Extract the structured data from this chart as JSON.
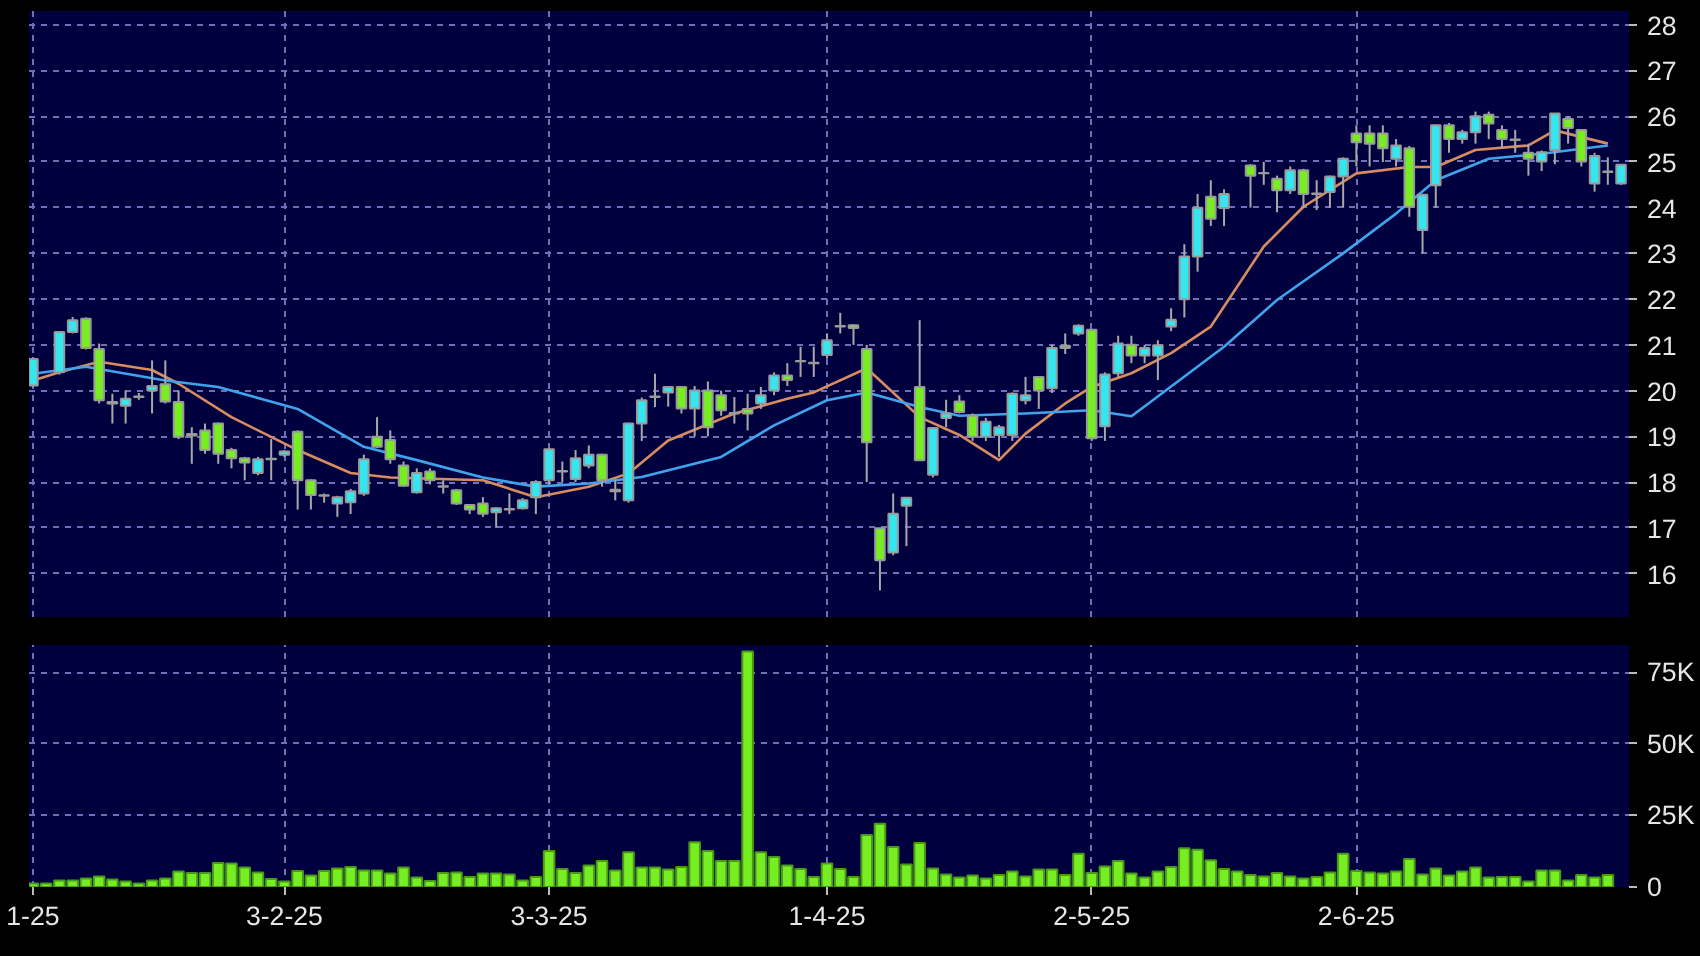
{
  "chart_data": [
    {
      "type": "candlestick",
      "ylim": [
        15.05,
        28.3
      ],
      "yticks": [
        16,
        17,
        18,
        19,
        20,
        21,
        22,
        23,
        24,
        25,
        26,
        27,
        28
      ],
      "categories": [
        null,
        null,
        null,
        null,
        null,
        null,
        null,
        null,
        null,
        null,
        null,
        null,
        null,
        null,
        null,
        null,
        null,
        null,
        null,
        null,
        null,
        null,
        null,
        null,
        null,
        null,
        null,
        null,
        null,
        null,
        null,
        null,
        null,
        null,
        null,
        null,
        null,
        null,
        null,
        null,
        null,
        null,
        null,
        null,
        null,
        null,
        null,
        null,
        null,
        null,
        null,
        null,
        null,
        null,
        null,
        null,
        null,
        null,
        null,
        null,
        null,
        null,
        null,
        null,
        null,
        null,
        null,
        null,
        null,
        null,
        null,
        null,
        null,
        null,
        null,
        null,
        null,
        null,
        null,
        null,
        null,
        null,
        null,
        null,
        null,
        null,
        null,
        null,
        null,
        null,
        null,
        null,
        null,
        null,
        null,
        null,
        null,
        null,
        null,
        null,
        null,
        null,
        null,
        null,
        null,
        null,
        null,
        null,
        null,
        null,
        null,
        null,
        null,
        null,
        null,
        null,
        null,
        null,
        null,
        null,
        null
      ],
      "tick_labels": "y",
      "grid": true,
      "series": [
        {
          "type": "line",
          "color": "#d98c5f",
          "values": [
            20.22,
            null,
            20.4,
            null,
            null,
            20.63,
            null,
            null,
            null,
            20.45,
            null,
            20.15,
            null,
            null,
            null,
            19.42,
            null,
            null,
            null,
            null,
            18.7,
            null,
            null,
            null,
            18.2,
            null,
            null,
            18.1,
            null,
            null,
            null,
            null,
            null,
            null,
            18.04,
            null,
            null,
            null,
            17.67,
            null,
            null,
            null,
            17.9,
            null,
            null,
            18.19,
            null,
            null,
            18.91,
            null,
            null,
            null,
            null,
            19.5,
            null,
            null,
            null,
            19.82,
            null,
            19.96,
            null,
            null,
            null,
            20.49,
            null,
            null,
            null,
            19.42,
            null,
            null,
            19.03,
            null,
            null,
            18.48,
            null,
            19.06,
            null,
            null,
            19.72,
            null,
            20.08,
            null,
            null,
            20.38,
            null,
            null,
            20.82,
            null,
            null,
            21.4,
            null,
            null,
            null,
            23.15,
            null,
            null,
            24.02,
            null,
            null,
            null,
            24.75,
            null,
            null,
            null,
            24.89,
            null,
            24.89,
            null,
            null,
            25.26,
            null,
            null,
            null,
            25.36,
            null,
            25.69,
            null,
            null,
            null,
            25.4,
            null
          ]
        },
        {
          "type": "line",
          "color": "#3fa4ec",
          "values": [
            20.37,
            null,
            null,
            null,
            20.52,
            null,
            null,
            null,
            null,
            null,
            20.22,
            null,
            null,
            null,
            20.08,
            null,
            null,
            null,
            null,
            null,
            19.6,
            null,
            null,
            null,
            null,
            18.77,
            null,
            null,
            null,
            18.48,
            null,
            null,
            null,
            null,
            18.1,
            null,
            null,
            null,
            17.9,
            null,
            null,
            null,
            17.97,
            null,
            null,
            null,
            18.11,
            null,
            null,
            null,
            null,
            null,
            18.55,
            null,
            null,
            null,
            19.24,
            null,
            null,
            null,
            19.79,
            null,
            null,
            19.96,
            null,
            null,
            null,
            19.64,
            null,
            null,
            19.45,
            null,
            null,
            null,
            null,
            19.5,
            null,
            null,
            null,
            null,
            19.57,
            null,
            null,
            19.44,
            null,
            null,
            20.09,
            null,
            null,
            null,
            20.96,
            null,
            null,
            null,
            21.98,
            null,
            null,
            null,
            null,
            23.0,
            null,
            null,
            null,
            23.87,
            null,
            null,
            24.6,
            null,
            null,
            null,
            25.07,
            null,
            null,
            null,
            25.18,
            null,
            null,
            null,
            null,
            25.36,
            null
          ]
        },
        {
          "type": "candlestick",
          "ohlc": [
            [
              20.11,
              20.73,
              20.08,
              20.69
            ],
            null,
            [
              20.4,
              21.3,
              20.35,
              21.28
            ],
            [
              21.28,
              21.61,
              21.25,
              21.54
            ],
            [
              21.57,
              21.6,
              20.9,
              20.93
            ],
            [
              20.91,
              21.03,
              19.72,
              19.79
            ],
            [
              19.75,
              19.93,
              19.28,
              19.72
            ],
            [
              19.67,
              20.0,
              19.28,
              19.82
            ],
            [
              19.87,
              19.95,
              19.8,
              19.86
            ],
            [
              20.0,
              20.66,
              19.5,
              20.1
            ],
            [
              20.14,
              20.66,
              19.72,
              19.76
            ],
            [
              19.75,
              20.0,
              18.94,
              18.99
            ],
            [
              19.05,
              19.2,
              18.4,
              19.02
            ],
            [
              19.13,
              19.28,
              18.62,
              18.7
            ],
            [
              19.28,
              19.3,
              18.4,
              18.62
            ],
            [
              18.7,
              18.75,
              18.3,
              18.52
            ],
            [
              18.52,
              18.55,
              18.04,
              18.43
            ],
            [
              18.2,
              18.55,
              18.15,
              18.5
            ],
            [
              18.51,
              18.94,
              18.04,
              18.5
            ],
            [
              18.6,
              18.7,
              18.55,
              18.67
            ],
            [
              19.1,
              19.13,
              17.4,
              18.04
            ],
            [
              18.04,
              18.06,
              17.4,
              17.72
            ],
            [
              17.71,
              17.75,
              17.55,
              17.7
            ],
            [
              17.53,
              17.7,
              17.24,
              17.67
            ],
            [
              17.56,
              17.85,
              17.3,
              17.8
            ],
            [
              17.75,
              18.6,
              17.7,
              18.5
            ],
            [
              18.99,
              19.42,
              18.75,
              18.77
            ],
            [
              18.92,
              19.13,
              18.4,
              18.5
            ],
            [
              18.36,
              18.45,
              17.9,
              17.92
            ],
            [
              17.78,
              18.3,
              17.75,
              18.2
            ],
            [
              18.23,
              18.3,
              17.95,
              18.04
            ],
            [
              17.91,
              18.04,
              17.75,
              17.9
            ],
            [
              17.82,
              17.85,
              17.5,
              17.53
            ],
            [
              17.5,
              17.52,
              17.3,
              17.4
            ],
            [
              17.53,
              17.67,
              17.24,
              17.31
            ],
            [
              17.34,
              17.45,
              17.0,
              17.43
            ],
            [
              17.41,
              17.75,
              17.3,
              17.4
            ],
            [
              17.43,
              17.65,
              17.4,
              17.6
            ],
            [
              17.67,
              18.04,
              17.3,
              18.0
            ],
            [
              18.04,
              18.75,
              17.95,
              18.72
            ],
            [
              18.24,
              18.45,
              18.0,
              18.23
            ],
            [
              18.07,
              18.7,
              18.0,
              18.52
            ],
            [
              18.36,
              18.8,
              18.3,
              18.6
            ],
            [
              18.6,
              18.62,
              17.9,
              18.04
            ],
            [
              17.83,
              18.04,
              17.6,
              17.8
            ],
            [
              17.6,
              19.3,
              17.55,
              19.28
            ],
            [
              19.28,
              19.85,
              18.9,
              19.79
            ],
            [
              19.87,
              20.37,
              19.64,
              19.86
            ],
            [
              19.96,
              20.1,
              19.65,
              20.08
            ],
            [
              20.08,
              20.1,
              19.5,
              19.61
            ],
            [
              19.61,
              20.1,
              19.0,
              20.0
            ],
            [
              20.0,
              20.2,
              19.0,
              19.2
            ],
            [
              19.9,
              20.0,
              19.45,
              19.57
            ],
            [
              19.51,
              19.86,
              19.28,
              19.5
            ],
            [
              19.6,
              19.93,
              19.13,
              19.5
            ],
            [
              19.72,
              20.08,
              19.6,
              19.9
            ],
            [
              20.0,
              20.4,
              19.9,
              20.33
            ],
            [
              20.33,
              20.6,
              20.1,
              20.23
            ],
            [
              20.65,
              20.96,
              20.3,
              20.64
            ],
            [
              20.61,
              20.96,
              20.3,
              20.6
            ],
            [
              20.78,
              21.25,
              20.7,
              21.1
            ],
            [
              21.41,
              21.7,
              21.25,
              21.4
            ],
            [
              21.43,
              21.45,
              21.0,
              21.37
            ],
            [
              20.91,
              21.0,
              18.0,
              18.87
            ],
            [
              16.99,
              17.0,
              15.63,
              16.29
            ],
            [
              16.46,
              17.75,
              16.4,
              17.31
            ],
            [
              17.48,
              17.67,
              16.6,
              17.66
            ],
            [
              20.08,
              21.54,
              18.48,
              18.48
            ],
            [
              18.16,
              19.2,
              18.1,
              19.18
            ],
            [
              19.4,
              19.8,
              19.2,
              19.5
            ],
            [
              19.76,
              19.9,
              19.5,
              19.53
            ],
            [
              19.45,
              19.5,
              18.9,
              18.99
            ],
            [
              18.99,
              19.4,
              18.9,
              19.32
            ],
            [
              19.03,
              19.25,
              18.55,
              19.2
            ],
            [
              19.03,
              19.96,
              18.9,
              19.93
            ],
            [
              19.79,
              20.3,
              19.7,
              19.9
            ],
            [
              20.3,
              20.3,
              19.6,
              20.0
            ],
            [
              20.05,
              21.0,
              19.95,
              20.93
            ],
            [
              20.98,
              21.25,
              20.8,
              20.93
            ],
            [
              21.25,
              21.45,
              21.2,
              21.42
            ],
            [
              21.33,
              21.35,
              18.9,
              18.96
            ],
            [
              19.22,
              20.4,
              18.9,
              20.35
            ],
            [
              20.38,
              21.2,
              20.3,
              21.03
            ],
            [
              21.0,
              21.2,
              20.6,
              20.77
            ],
            [
              20.77,
              21.0,
              20.6,
              20.93
            ],
            [
              20.77,
              21.1,
              20.23,
              20.99
            ],
            [
              21.4,
              21.8,
              21.3,
              21.55
            ],
            [
              22.0,
              23.2,
              21.6,
              22.93
            ],
            [
              22.93,
              24.3,
              22.6,
              24.0
            ],
            [
              24.24,
              24.6,
              23.6,
              23.76
            ],
            [
              23.99,
              24.4,
              23.6,
              24.3
            ],
            null,
            [
              24.92,
              24.95,
              24.0,
              24.7
            ],
            [
              24.76,
              25.0,
              24.5,
              24.75
            ],
            [
              24.63,
              24.7,
              23.9,
              24.38
            ],
            [
              24.38,
              24.9,
              24.3,
              24.82
            ],
            [
              24.82,
              24.85,
              24.0,
              24.3
            ],
            [
              24.31,
              24.6,
              23.95,
              24.3
            ],
            [
              24.34,
              24.7,
              24.0,
              24.68
            ],
            [
              24.68,
              25.1,
              24.0,
              25.07
            ],
            [
              25.62,
              25.8,
              24.9,
              25.43
            ],
            [
              25.62,
              25.8,
              24.9,
              25.4
            ],
            [
              25.62,
              25.8,
              25.0,
              25.3
            ],
            [
              25.07,
              25.5,
              24.9,
              25.36
            ],
            [
              25.3,
              25.35,
              23.8,
              24.02
            ],
            [
              23.51,
              24.3,
              23.0,
              24.28
            ],
            [
              24.49,
              25.82,
              24.0,
              25.8
            ],
            [
              25.8,
              25.85,
              25.2,
              25.5
            ],
            [
              25.5,
              25.7,
              25.4,
              25.65
            ],
            [
              25.65,
              26.1,
              25.4,
              26.0
            ],
            [
              26.03,
              26.1,
              25.5,
              25.84
            ],
            [
              25.7,
              25.8,
              25.3,
              25.5
            ],
            [
              25.49,
              25.7,
              25.2,
              25.48
            ],
            [
              25.2,
              25.4,
              24.7,
              25.07
            ],
            [
              25.01,
              25.25,
              24.8,
              25.21
            ],
            [
              25.26,
              26.07,
              24.95,
              26.06
            ],
            [
              25.94,
              26.0,
              25.4,
              25.74
            ],
            [
              25.7,
              25.7,
              24.9,
              25.01
            ],
            [
              24.53,
              25.2,
              24.35,
              25.13
            ],
            [
              24.79,
              25.1,
              24.5,
              24.78
            ],
            [
              24.53,
              24.95,
              24.5,
              24.94
            ]
          ],
          "colors": [
            "#33e6f0",
            null,
            "#33e6f0",
            "#33e6f0",
            "#77ee22",
            "#77ee22",
            "#77ee22",
            "#33e6f0",
            "#77ee22",
            "#33e6f0",
            "#77ee22",
            "#77ee22",
            "#77ee22",
            "#77ee22",
            "#77ee22",
            "#77ee22",
            "#77ee22",
            "#33e6f0",
            "#77ee22",
            "#33e6f0",
            "#77ee22",
            "#77ee22",
            "#77ee22",
            "#33e6f0",
            "#33e6f0",
            "#33e6f0",
            "#77ee22",
            "#77ee22",
            "#77ee22",
            "#33e6f0",
            "#77ee22",
            "#77ee22",
            "#77ee22",
            "#77ee22",
            "#77ee22",
            "#33e6f0",
            "#77ee22",
            "#33e6f0",
            "#33e6f0",
            "#33e6f0",
            "#77ee22",
            "#33e6f0",
            "#33e6f0",
            "#77ee22",
            "#77ee22",
            "#33e6f0",
            "#33e6f0",
            "#77ee22",
            "#33e6f0",
            "#77ee22",
            "#33e6f0",
            "#77ee22",
            "#77ee22",
            "#77ee22",
            "#77ee22",
            "#33e6f0",
            "#33e6f0",
            "#77ee22",
            "#77ee22",
            "#77ee22",
            "#33e6f0",
            "#77ee22",
            "#77ee22",
            "#77ee22",
            "#77ee22",
            "#33e6f0",
            "#33e6f0",
            "#77ee22",
            "#33e6f0",
            "#33e6f0",
            "#77ee22",
            "#77ee22",
            "#33e6f0",
            "#33e6f0",
            "#33e6f0",
            "#33e6f0",
            "#77ee22",
            "#33e6f0",
            "#77ee22",
            "#33e6f0",
            "#77ee22",
            "#33e6f0",
            "#33e6f0",
            "#77ee22",
            "#33e6f0",
            "#33e6f0",
            "#33e6f0",
            "#33e6f0",
            "#33e6f0",
            "#77ee22",
            "#33e6f0",
            null,
            "#77ee22",
            "#77ee22",
            "#77ee22",
            "#33e6f0",
            "#77ee22",
            "#77ee22",
            "#33e6f0",
            "#33e6f0",
            "#77ee22",
            "#77ee22",
            "#77ee22",
            "#33e6f0",
            "#77ee22",
            "#33e6f0",
            "#33e6f0",
            "#77ee22",
            "#33e6f0",
            "#33e6f0",
            "#77ee22",
            "#77ee22",
            "#77ee22",
            "#77ee22",
            "#33e6f0",
            "#33e6f0",
            "#77ee22",
            "#77ee22",
            "#33e6f0",
            "#77ee22",
            "#33e6f0"
          ]
        }
      ]
    },
    {
      "type": "bar",
      "ylim": [
        0,
        84500
      ],
      "yticks": [
        0,
        {
          "value": 25000,
          "label": "25K"
        },
        {
          "value": 50000,
          "label": "50K"
        },
        {
          "value": 75000,
          "label": "75K"
        }
      ],
      "categories": [
        "1-25",
        null,
        null,
        null,
        null,
        null,
        null,
        null,
        null,
        null,
        null,
        null,
        null,
        null,
        null,
        null,
        null,
        null,
        null,
        "3-2-25",
        null,
        null,
        null,
        null,
        null,
        null,
        null,
        null,
        null,
        null,
        null,
        null,
        null,
        null,
        null,
        null,
        null,
        null,
        null,
        "3-3-25",
        null,
        null,
        null,
        null,
        null,
        null,
        null,
        null,
        null,
        null,
        null,
        null,
        null,
        null,
        null,
        null,
        null,
        null,
        null,
        null,
        "1-4-25",
        null,
        null,
        null,
        null,
        null,
        null,
        null,
        null,
        null,
        null,
        null,
        null,
        null,
        null,
        null,
        null,
        null,
        null,
        null,
        "2-5-25",
        null,
        null,
        null,
        null,
        null,
        null,
        null,
        null,
        null,
        null,
        null,
        null,
        null,
        null,
        null,
        null,
        null,
        null,
        null,
        "2-6-25",
        null,
        null,
        null,
        null,
        null,
        null,
        null,
        null,
        null,
        null,
        null,
        null,
        null,
        null,
        null,
        null,
        null,
        null,
        null,
        null
      ],
      "grid": true,
      "color": "#77ee22",
      "values": [
        1200,
        1200,
        2300,
        2300,
        3000,
        3700,
        2600,
        1900,
        1200,
        2300,
        3000,
        5400,
        4900,
        4900,
        8400,
        8200,
        6800,
        5100,
        2800,
        1900,
        5600,
        4000,
        5600,
        6500,
        7000,
        5800,
        5800,
        4700,
        6800,
        3300,
        2100,
        4900,
        5100,
        3500,
        4700,
        4700,
        4400,
        2300,
        3500,
        12600,
        6300,
        4900,
        7500,
        9100,
        5800,
        12100,
        6800,
        6800,
        6100,
        7000,
        15600,
        12600,
        9100,
        9100,
        82200,
        12100,
        10500,
        7500,
        6300,
        3500,
        8200,
        6300,
        3500,
        18200,
        22100,
        14000,
        7900,
        15400,
        6500,
        4400,
        3300,
        4000,
        3000,
        4200,
        5400,
        3700,
        6100,
        6100,
        4200,
        11600,
        4900,
        7200,
        9100,
        4700,
        3300,
        5400,
        7000,
        13500,
        13000,
        9300,
        6300,
        5400,
        4200,
        3700,
        4900,
        3700,
        3000,
        3500,
        5100,
        11600,
        5600,
        5100,
        4700,
        5400,
        9800,
        4400,
        6500,
        4000,
        5400,
        6800,
        3300,
        3500,
        3500,
        1900,
        5800,
        5800,
        2300,
        4200,
        3300,
        4200,
        null
      ]
    }
  ]
}
